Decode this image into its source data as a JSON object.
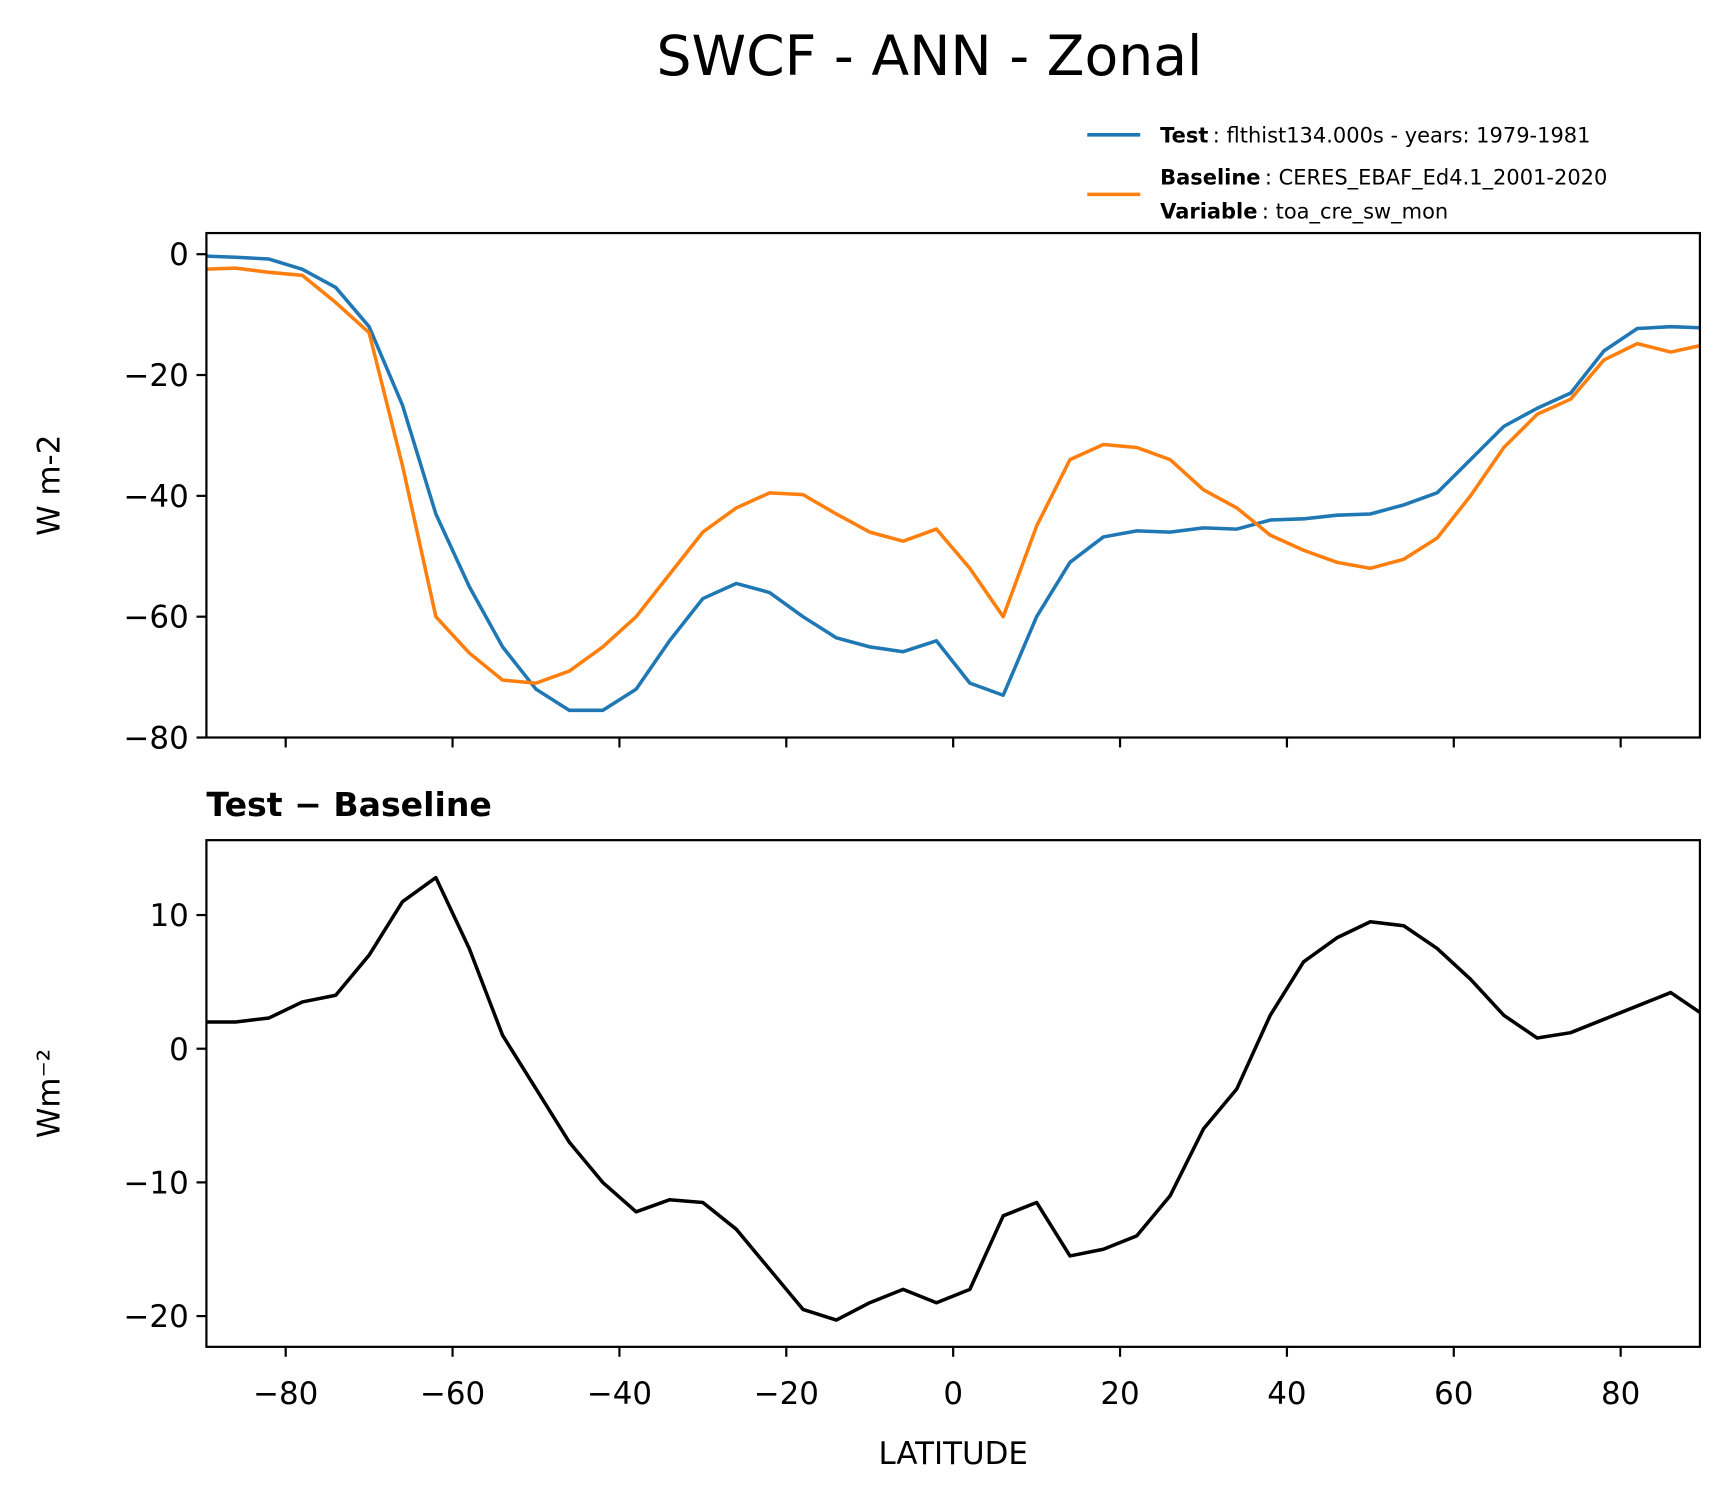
{
  "title": "SWCF - ANN - Zonal",
  "chart_data": [
    {
      "type": "line",
      "ylabel": "W m-2",
      "x": [
        -90,
        -86,
        -82,
        -78,
        -74,
        -70,
        -66,
        -62,
        -58,
        -54,
        -50,
        -46,
        -42,
        -38,
        -34,
        -30,
        -26,
        -22,
        -18,
        -14,
        -10,
        -6,
        -2,
        2,
        6,
        10,
        14,
        18,
        22,
        26,
        30,
        34,
        38,
        42,
        46,
        50,
        54,
        58,
        62,
        66,
        70,
        74,
        78,
        82,
        86,
        90
      ],
      "series": [
        {
          "name": "Test",
          "description": ": flthist134.000s - years: 1979-1981",
          "color": "#1f77b4",
          "values": [
            -0.3,
            -0.5,
            -0.8,
            -2.5,
            -5.5,
            -12,
            -25,
            -43,
            -55,
            -65,
            -72,
            -75.5,
            -75.5,
            -72,
            -64,
            -57,
            -54.5,
            -56,
            -60,
            -63.5,
            -65,
            -65.8,
            -64,
            -71,
            -73,
            -60,
            -51,
            -46.8,
            -45.8,
            -46,
            -45.3,
            -45.5,
            -44,
            -43.8,
            -43.2,
            -43,
            -41.5,
            -39.5,
            -34,
            -28.5,
            -25.5,
            -23,
            -16,
            -12.3,
            -12,
            -12.2
          ]
        },
        {
          "name": "Baseline",
          "description": ": CERES_EBAF_Ed4.1_2001-2020",
          "extra_label": "Variable",
          "extra_description": ": toa_cre_sw_mon",
          "color": "#ff7f0e",
          "values": [
            -2.5,
            -2.3,
            -3,
            -3.5,
            -8,
            -13,
            -35,
            -60,
            -66,
            -70.5,
            -71,
            -69,
            -65,
            -60,
            -53,
            -46,
            -42,
            -39.5,
            -39.8,
            -43,
            -46,
            -47.5,
            -45.5,
            -52,
            -60,
            -45,
            -34,
            -31.5,
            -32,
            -34,
            -39,
            -42,
            -46.5,
            -49,
            -51,
            -52,
            -50.5,
            -47,
            -40,
            -32,
            -26.5,
            -24,
            -17.5,
            -14.8,
            -16.2,
            -15
          ]
        }
      ],
      "xlim": [
        -89.5,
        89.5
      ],
      "xticks": [
        -80,
        -60,
        -40,
        -20,
        0,
        20,
        40,
        60,
        80
      ],
      "ylim": [
        -80,
        3.5
      ],
      "yticks": [
        0,
        {
          "value": -20,
          "label": "−20"
        },
        {
          "value": -40,
          "label": "−40"
        },
        {
          "value": -60,
          "label": "−60"
        },
        {
          "value": -80,
          "label": "−80"
        }
      ],
      "legend": "upper right"
    },
    {
      "type": "line",
      "title": "Test − Baseline",
      "xlabel": "LATITUDE",
      "ylabel": "Wm⁻²",
      "x": [
        -90,
        -86,
        -82,
        -78,
        -74,
        -70,
        -66,
        -62,
        -58,
        -54,
        -50,
        -46,
        -42,
        -38,
        -34,
        -30,
        -26,
        -22,
        -18,
        -14,
        -10,
        -6,
        -2,
        2,
        6,
        10,
        14,
        18,
        22,
        26,
        30,
        34,
        38,
        42,
        46,
        50,
        54,
        58,
        62,
        66,
        70,
        74,
        78,
        82,
        86,
        90
      ],
      "series": [
        {
          "color": "#000000",
          "values": [
            2,
            2,
            2.3,
            3.5,
            4,
            7,
            11,
            12.8,
            7.5,
            1,
            -3,
            -7,
            -10,
            -12.2,
            -11.3,
            -11.5,
            -13.5,
            -16.5,
            -19.5,
            -20.3,
            -19,
            -18,
            -19,
            -18,
            -12.5,
            -11.5,
            -15.5,
            -15,
            -14,
            -11,
            -6,
            -3,
            2.5,
            6.5,
            8.3,
            9.5,
            9.2,
            7.5,
            5.2,
            2.5,
            0.8,
            1.2,
            2.2,
            3.2,
            4.2,
            2.5
          ]
        }
      ],
      "xlim": [
        -89.5,
        89.5
      ],
      "xticks": [
        {
          "value": -80,
          "label": "−80"
        },
        {
          "value": -60,
          "label": "−60"
        },
        {
          "value": -40,
          "label": "−40"
        },
        {
          "value": -20,
          "label": "−20"
        },
        0,
        20,
        40,
        60,
        80
      ],
      "ylim": [
        -22.3,
        15.6
      ],
      "yticks": [
        10,
        0,
        {
          "value": -10,
          "label": "−10"
        },
        {
          "value": -20,
          "label": "−20"
        }
      ]
    }
  ]
}
